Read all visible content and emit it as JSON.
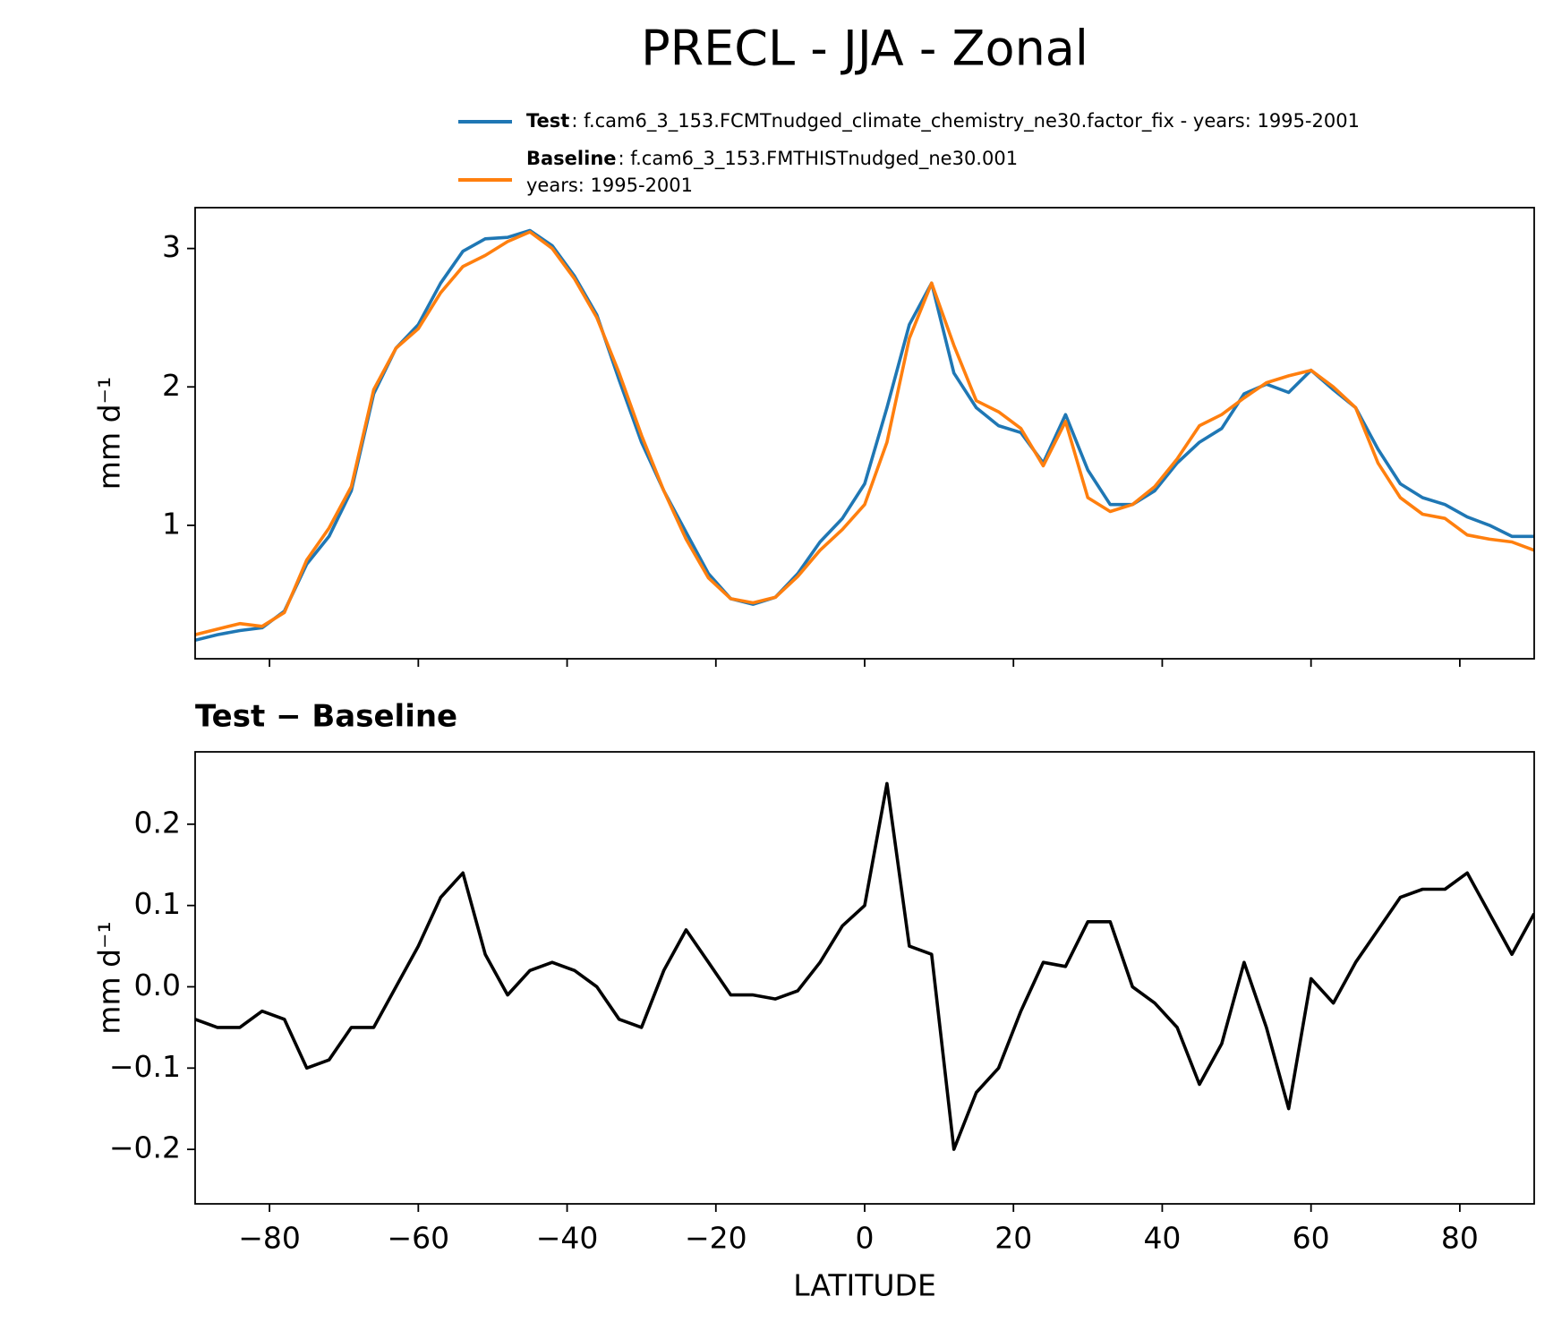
{
  "title": "PRECL - JJA - Zonal",
  "chart_data": [
    {
      "type": "line",
      "ylabel": "mm d⁻¹",
      "xlim": [
        -90,
        90
      ],
      "ylim": [
        0.036,
        3.295
      ],
      "yticks": [
        1,
        2,
        3
      ],
      "x": [
        -90,
        -87,
        -84,
        -81,
        -78,
        -75,
        -72,
        -69,
        -66,
        -63,
        -60,
        -57,
        -54,
        -51,
        -48,
        -45,
        -42,
        -39,
        -36,
        -33,
        -30,
        -27,
        -24,
        -21,
        -18,
        -15,
        -12,
        -9,
        -6,
        -3,
        0,
        3,
        6,
        9,
        12,
        15,
        18,
        21,
        24,
        27,
        30,
        33,
        36,
        39,
        42,
        45,
        48,
        51,
        54,
        57,
        60,
        63,
        66,
        69,
        72,
        75,
        78,
        81,
        84,
        87,
        90
      ],
      "series": [
        {
          "name": "Test",
          "description": [
            ": f.cam6_3_153.FCMTnudged_climate_chemistry_ne30.factor_fix - years: 1995-2001"
          ],
          "color": "#1f77b4",
          "values": [
            0.17,
            0.21,
            0.24,
            0.26,
            0.38,
            0.72,
            0.92,
            1.25,
            1.95,
            2.28,
            2.45,
            2.75,
            2.98,
            3.07,
            3.08,
            3.13,
            3.02,
            2.8,
            2.52,
            2.05,
            1.6,
            1.25,
            0.95,
            0.65,
            0.47,
            0.43,
            0.48,
            0.65,
            0.88,
            1.05,
            1.3,
            1.85,
            2.45,
            2.75,
            2.1,
            1.85,
            1.72,
            1.67,
            1.45,
            1.8,
            1.4,
            1.15,
            1.15,
            1.25,
            1.45,
            1.6,
            1.7,
            1.95,
            2.02,
            1.96,
            2.12,
            1.98,
            1.85,
            1.55,
            1.3,
            1.2,
            1.15,
            1.06,
            1.0,
            0.92,
            0.92
          ]
        },
        {
          "name": "Baseline",
          "description": [
            ": f.cam6_3_153.FMTHISTnudged_ne30.001",
            "years: 1995-2001"
          ],
          "color": "#ff7f0e",
          "values": [
            0.21,
            0.25,
            0.29,
            0.27,
            0.37,
            0.75,
            0.98,
            1.28,
            1.98,
            2.28,
            2.42,
            2.68,
            2.87,
            2.95,
            3.05,
            3.12,
            3.0,
            2.78,
            2.5,
            2.1,
            1.65,
            1.25,
            0.9,
            0.62,
            0.47,
            0.44,
            0.48,
            0.63,
            0.82,
            0.97,
            1.15,
            1.6,
            2.35,
            2.75,
            2.3,
            1.9,
            1.82,
            1.7,
            1.43,
            1.75,
            1.2,
            1.1,
            1.15,
            1.28,
            1.48,
            1.72,
            1.8,
            1.92,
            2.03,
            2.08,
            2.12,
            2.0,
            1.85,
            1.45,
            1.2,
            1.08,
            1.05,
            0.93,
            0.9,
            0.88,
            0.82
          ]
        }
      ]
    },
    {
      "type": "line",
      "title": "Test − Baseline",
      "ylabel": "mm d⁻¹",
      "xlabel": "LATITUDE",
      "xlim": [
        -90,
        90
      ],
      "ylim": [
        -0.267,
        0.289
      ],
      "xticks": [
        {
          "value": -80,
          "label": "−80"
        },
        {
          "value": -60,
          "label": "−60"
        },
        {
          "value": -40,
          "label": "−40"
        },
        {
          "value": -20,
          "label": "−20"
        },
        0,
        20,
        40,
        60,
        80
      ],
      "yticks": [
        {
          "value": -0.2,
          "label": "−0.2"
        },
        {
          "value": -0.1,
          "label": "−0.1"
        },
        {
          "value": 0,
          "label": "0.0"
        },
        0.1,
        0.2
      ],
      "x": [
        -90,
        -87,
        -84,
        -81,
        -78,
        -75,
        -72,
        -69,
        -66,
        -63,
        -60,
        -57,
        -54,
        -51,
        -48,
        -45,
        -42,
        -39,
        -36,
        -33,
        -30,
        -27,
        -24,
        -21,
        -18,
        -15,
        -12,
        -9,
        -6,
        -3,
        0,
        3,
        6,
        9,
        12,
        15,
        18,
        21,
        24,
        27,
        30,
        33,
        36,
        39,
        42,
        45,
        48,
        51,
        54,
        57,
        60,
        63,
        66,
        69,
        72,
        75,
        78,
        81,
        84,
        87,
        90
      ],
      "series": [
        {
          "color": "#000000",
          "values": [
            -0.04,
            -0.05,
            -0.05,
            -0.03,
            -0.04,
            -0.1,
            -0.09,
            -0.05,
            -0.05,
            0.0,
            0.05,
            0.11,
            0.14,
            0.04,
            -0.01,
            0.02,
            0.03,
            0.02,
            0.0,
            -0.04,
            -0.05,
            0.02,
            0.07,
            0.03,
            -0.01,
            -0.01,
            -0.015,
            -0.005,
            0.03,
            0.075,
            0.1,
            0.25,
            0.05,
            0.04,
            -0.2,
            -0.13,
            -0.1,
            -0.03,
            0.03,
            0.025,
            0.08,
            0.08,
            0.0,
            -0.02,
            -0.05,
            -0.12,
            -0.07,
            0.03,
            -0.05,
            -0.15,
            0.01,
            -0.02,
            0.03,
            0.07,
            0.11,
            0.12,
            0.12,
            0.14,
            0.09,
            0.04,
            0.09
          ]
        }
      ]
    }
  ]
}
